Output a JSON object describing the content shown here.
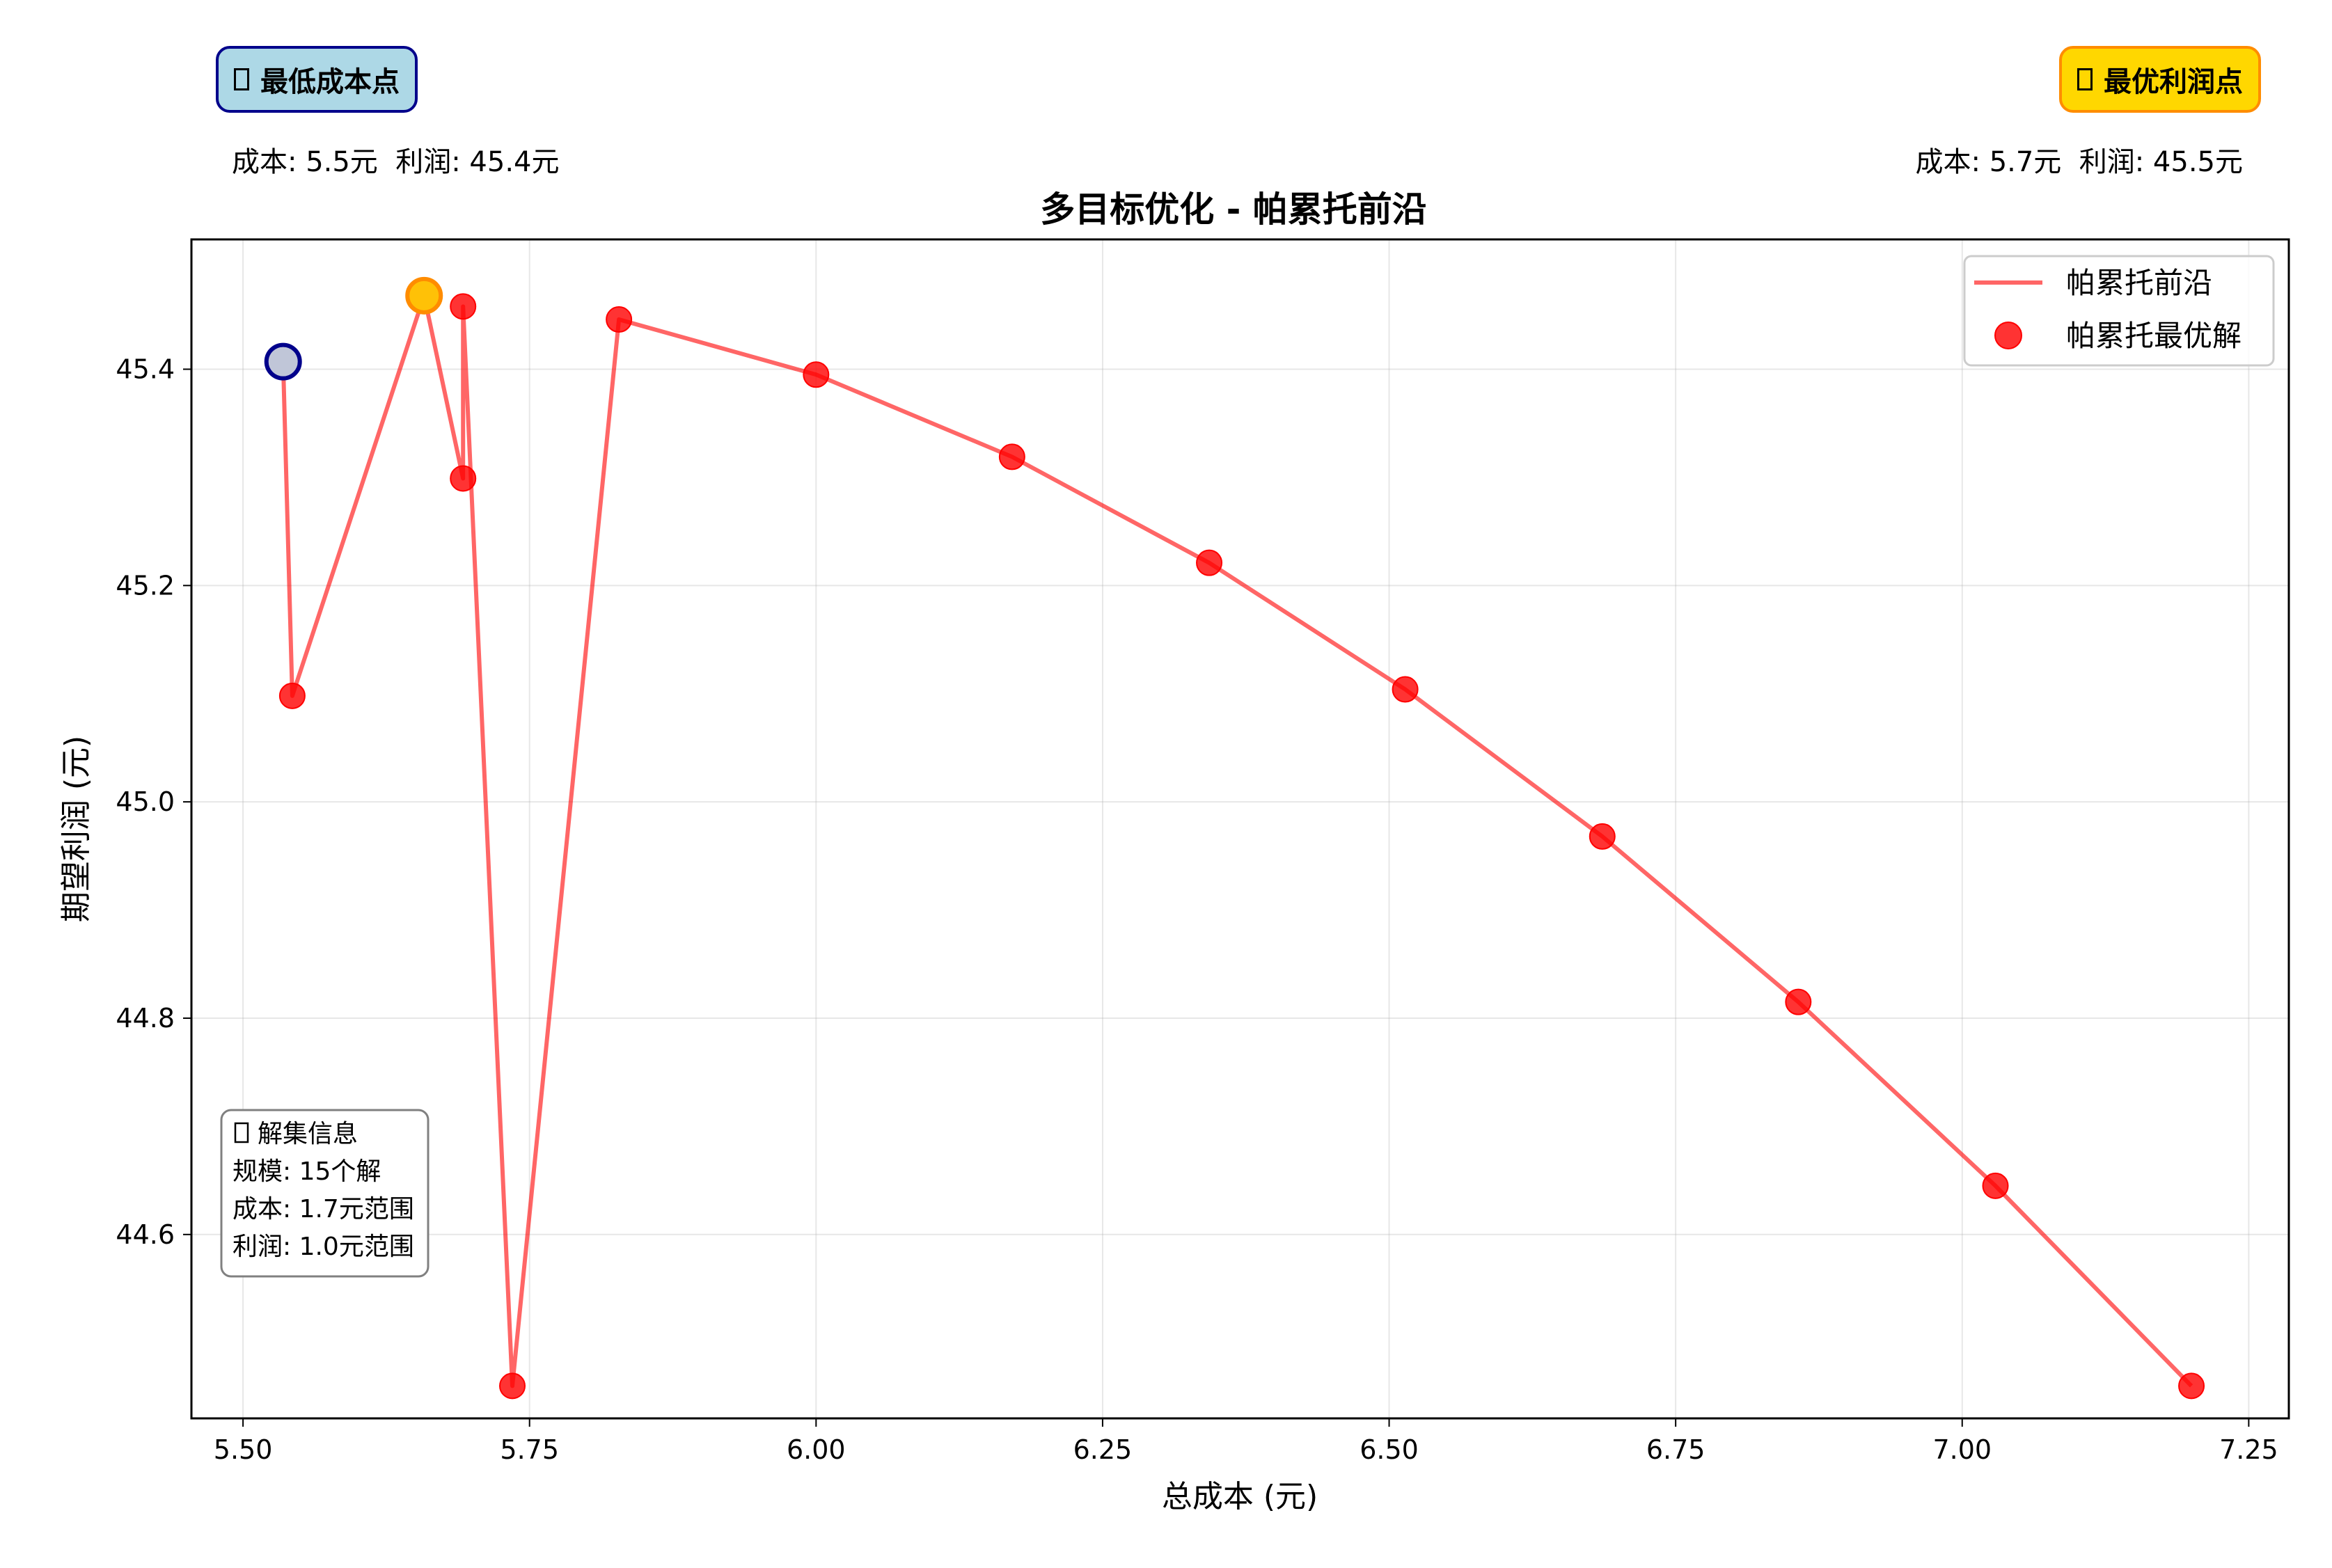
{
  "badges": {
    "min_cost": {
      "label": "最低成本点",
      "detail": "成本: 5.5元  利润: 45.4元"
    },
    "best_profit": {
      "label": "最优利润点",
      "detail": "成本: 5.7元  利润: 45.5元"
    }
  },
  "info_box": {
    "title": "解集信息",
    "lines": [
      "规模: 15个解",
      "成本: 1.7元范围",
      "利润: 1.0元范围"
    ]
  },
  "colors": {
    "frontier": "#ff0000",
    "min_cost_marker": "#c0c6d8",
    "min_cost_edge": "#00008b",
    "best_profit_marker": "#ffc107",
    "best_profit_edge": "#ff8c00"
  },
  "chart_data": {
    "type": "line",
    "title": "多目标优化 - 帕累托前沿",
    "xlabel": "总成本 (元)",
    "ylabel": "期望利润 (元)",
    "xlim": [
      5.455,
      7.285
    ],
    "ylim": [
      44.43,
      45.52
    ],
    "xticks": [
      5.5,
      5.75,
      6.0,
      6.25,
      6.5,
      6.75,
      7.0,
      7.25
    ],
    "xtick_labels": [
      "5.50",
      "5.75",
      "6.00",
      "6.25",
      "6.50",
      "6.75",
      "7.00",
      "7.25"
    ],
    "yticks": [
      44.6,
      44.8,
      45.0,
      45.2,
      45.4
    ],
    "ytick_labels": [
      "44.6",
      "44.8",
      "45.0",
      "45.2",
      "45.4"
    ],
    "grid": true,
    "legend_position": "top-right",
    "series": [
      {
        "name": "帕累托前沿",
        "style": "line",
        "x": [
          5.535,
          5.543,
          5.658,
          5.692,
          5.692,
          5.735,
          5.828,
          6.0,
          6.171,
          6.343,
          6.514,
          6.686,
          6.857,
          7.029,
          7.2
        ],
        "y": [
          45.407,
          45.098,
          45.468,
          45.299,
          45.458,
          44.46,
          45.446,
          45.395,
          45.319,
          45.221,
          45.104,
          44.968,
          44.815,
          44.645,
          44.46
        ]
      },
      {
        "name": "帕累托最优解",
        "style": "scatter",
        "x": [
          5.543,
          5.692,
          5.692,
          5.735,
          5.828,
          6.0,
          6.171,
          6.343,
          6.514,
          6.686,
          6.857,
          7.029,
          7.2
        ],
        "y": [
          45.098,
          45.458,
          45.299,
          44.46,
          45.446,
          45.395,
          45.319,
          45.221,
          45.104,
          44.968,
          44.815,
          44.645,
          44.46
        ]
      }
    ],
    "highlights": {
      "min_cost_point": {
        "x": 5.535,
        "y": 45.407
      },
      "best_profit_point": {
        "x": 5.658,
        "y": 45.468
      }
    }
  }
}
